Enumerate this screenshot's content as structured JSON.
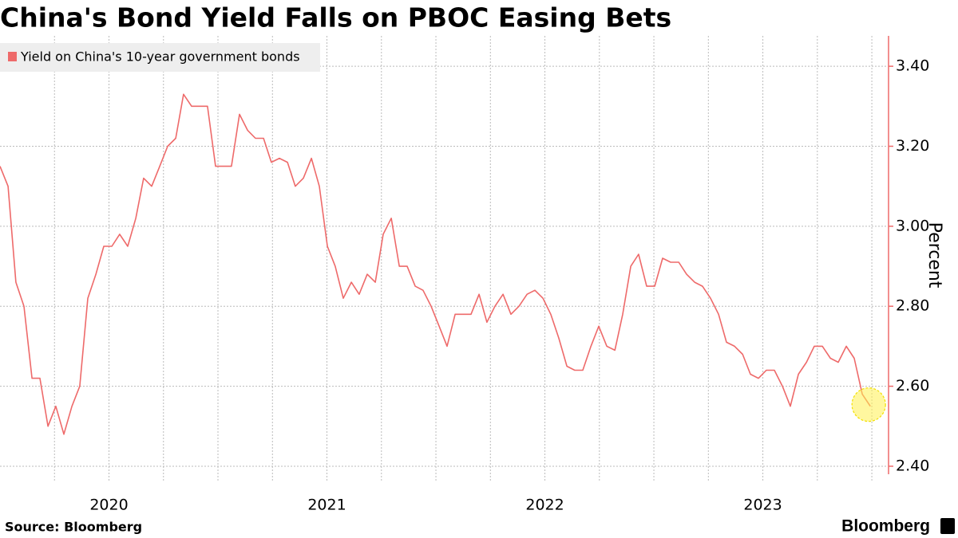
{
  "chart_data": {
    "type": "line",
    "title": "China's Bond Yield Falls on PBOC Easing Bets",
    "y_label": "Percent",
    "source": "Source:  Bloomberg",
    "brand": "Bloomberg",
    "legend_position": "upper left",
    "x": [
      2020.0,
      2020.037,
      2020.073,
      2020.11,
      2020.147,
      2020.183,
      2020.22,
      2020.256,
      2020.293,
      2020.33,
      2020.366,
      2020.403,
      2020.44,
      2020.476,
      2020.513,
      2020.549,
      2020.586,
      2020.623,
      2020.659,
      2020.696,
      2020.733,
      2020.769,
      2020.806,
      2020.842,
      2020.879,
      2020.916,
      2020.952,
      2020.989,
      2021.026,
      2021.062,
      2021.099,
      2021.136,
      2021.172,
      2021.209,
      2021.245,
      2021.282,
      2021.319,
      2021.355,
      2021.392,
      2021.429,
      2021.465,
      2021.502,
      2021.538,
      2021.575,
      2021.612,
      2021.648,
      2021.685,
      2021.722,
      2021.758,
      2021.795,
      2021.832,
      2021.868,
      2021.905,
      2021.941,
      2021.978,
      2022.015,
      2022.051,
      2022.088,
      2022.125,
      2022.161,
      2022.198,
      2022.234,
      2022.271,
      2022.308,
      2022.344,
      2022.381,
      2022.418,
      2022.454,
      2022.491,
      2022.527,
      2022.564,
      2022.601,
      2022.637,
      2022.674,
      2022.711,
      2022.747,
      2022.784,
      2022.821,
      2022.857,
      2022.894,
      2022.93,
      2022.967,
      2023.004,
      2023.04,
      2023.077,
      2023.114,
      2023.15,
      2023.187,
      2023.223,
      2023.26,
      2023.297,
      2023.333,
      2023.37,
      2023.407,
      2023.443,
      2023.48,
      2023.516,
      2023.553,
      2023.59,
      2023.626,
      2023.663,
      2023.7,
      2023.736,
      2023.773,
      2023.81,
      2023.846,
      2023.883,
      2023.919,
      2023.956,
      2023.993
    ],
    "series": [
      {
        "name": "Yield on China's 10-year government bonds",
        "color": "#ee6a6a",
        "values": [
          3.15,
          3.1,
          2.86,
          2.8,
          2.62,
          2.62,
          2.5,
          2.55,
          2.48,
          2.55,
          2.6,
          2.82,
          2.88,
          2.95,
          2.95,
          2.98,
          2.95,
          3.02,
          3.12,
          3.1,
          3.15,
          3.2,
          3.22,
          3.33,
          3.3,
          3.3,
          3.3,
          3.15,
          3.15,
          3.15,
          3.28,
          3.24,
          3.22,
          3.22,
          3.16,
          3.17,
          3.16,
          3.1,
          3.12,
          3.17,
          3.1,
          2.95,
          2.9,
          2.82,
          2.86,
          2.83,
          2.88,
          2.86,
          2.98,
          3.02,
          2.9,
          2.9,
          2.85,
          2.84,
          2.8,
          2.75,
          2.7,
          2.78,
          2.78,
          2.78,
          2.83,
          2.76,
          2.8,
          2.83,
          2.78,
          2.8,
          2.83,
          2.84,
          2.82,
          2.78,
          2.72,
          2.65,
          2.64,
          2.64,
          2.7,
          2.75,
          2.7,
          2.69,
          2.78,
          2.9,
          2.93,
          2.85,
          2.85,
          2.92,
          2.91,
          2.91,
          2.88,
          2.86,
          2.85,
          2.82,
          2.78,
          2.71,
          2.7,
          2.68,
          2.63,
          2.62,
          2.64,
          2.64,
          2.6,
          2.55,
          2.63,
          2.66,
          2.7,
          2.7,
          2.67,
          2.66,
          2.7,
          2.67,
          2.58,
          2.55
        ]
      }
    ],
    "xlim": [
      2020.0,
      2024.073
    ],
    "xticks": [
      {
        "value": 2020.5,
        "label": "2020"
      },
      {
        "value": 2021.5,
        "label": "2021"
      },
      {
        "value": 2022.5,
        "label": "2022"
      },
      {
        "value": 2023.5,
        "label": "2023"
      }
    ],
    "xgrid": [
      2020.25,
      2020.5,
      2020.75,
      2021.0,
      2021.25,
      2021.5,
      2021.75,
      2022.0,
      2022.25,
      2022.5,
      2022.75,
      2023.0,
      2023.25,
      2023.5,
      2023.75,
      2024.0
    ],
    "ylim": [
      2.38,
      3.476
    ],
    "yticks": [
      {
        "value": 2.4,
        "label": "2.40"
      },
      {
        "value": 2.6,
        "label": "2.60"
      },
      {
        "value": 2.8,
        "label": "2.80"
      },
      {
        "value": 3.0,
        "label": "3.00"
      },
      {
        "value": 3.2,
        "label": "3.20"
      },
      {
        "value": 3.4,
        "label": "3.40"
      }
    ],
    "grid": true
  }
}
